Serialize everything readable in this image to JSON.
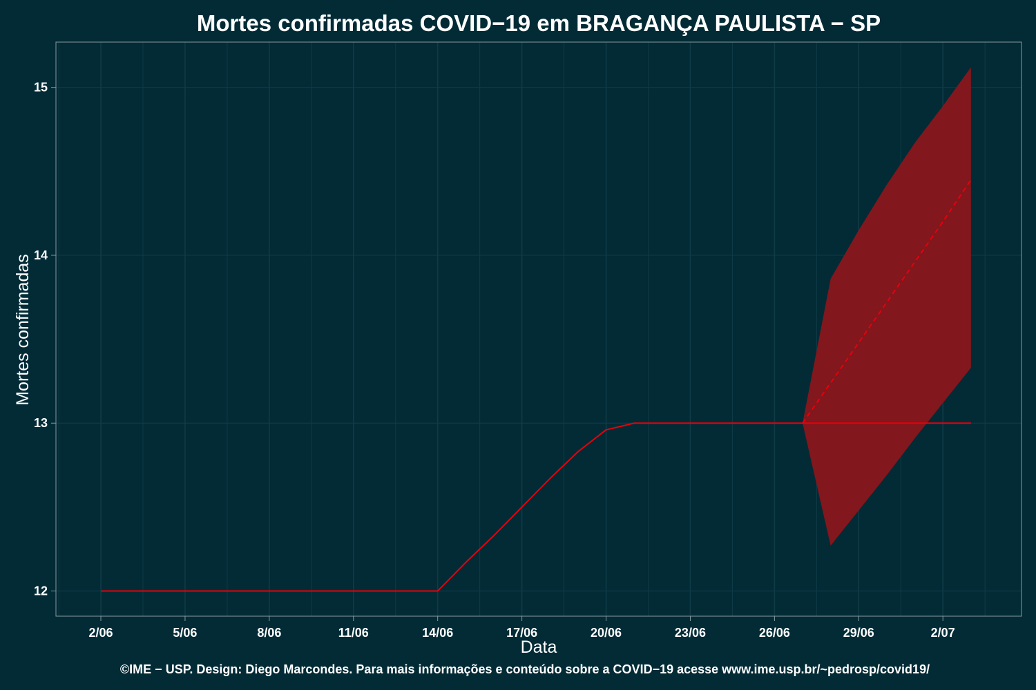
{
  "chart_data": {
    "type": "line",
    "title": "Mortes confirmadas COVID−19 em BRAGANÇA PAULISTA − SP",
    "xlabel": "Data",
    "ylabel": "Mortes confirmadas",
    "caption": "©IME − USP. Design: Diego Marcondes. Para mais informações e conteúdo sobre a COVID−19 acesse www.ime.usp.br/~pedrosp/covid19/",
    "x_ticks": [
      {
        "day": 2,
        "label": "2/06"
      },
      {
        "day": 5,
        "label": "5/06"
      },
      {
        "day": 8,
        "label": "8/06"
      },
      {
        "day": 11,
        "label": "11/06"
      },
      {
        "day": 14,
        "label": "14/06"
      },
      {
        "day": 17,
        "label": "17/06"
      },
      {
        "day": 20,
        "label": "20/06"
      },
      {
        "day": 23,
        "label": "23/06"
      },
      {
        "day": 26,
        "label": "26/06"
      },
      {
        "day": 29,
        "label": "29/06"
      },
      {
        "day": 32,
        "label": "2/07"
      }
    ],
    "y_ticks": [
      12,
      13,
      14,
      15
    ],
    "xlim": [
      0.4,
      34.8
    ],
    "ylim": [
      11.85,
      15.27
    ],
    "grid": true,
    "colors": {
      "background": "#022b36",
      "line": "#e8000b",
      "band": "#82171d",
      "grid": "#0f3b47",
      "axis": "#8a9aa0"
    },
    "series": [
      {
        "points": [
          [
            2,
            12
          ],
          [
            3,
            12
          ],
          [
            4,
            12
          ],
          [
            5,
            12
          ],
          [
            6,
            12
          ],
          [
            7,
            12
          ],
          [
            8,
            12
          ],
          [
            9,
            12
          ],
          [
            10,
            12
          ],
          [
            11,
            12
          ],
          [
            12,
            12
          ],
          [
            13,
            12
          ],
          [
            14,
            12
          ],
          [
            15,
            12.17
          ],
          [
            16,
            12.33
          ],
          [
            17,
            12.5
          ],
          [
            18,
            12.67
          ],
          [
            19,
            12.83
          ],
          [
            20,
            12.96
          ],
          [
            21,
            13
          ],
          [
            22,
            13
          ],
          [
            23,
            13
          ],
          [
            24,
            13
          ],
          [
            25,
            13
          ],
          [
            26,
            13
          ],
          [
            27,
            13
          ],
          [
            28,
            13
          ],
          [
            29,
            13
          ],
          [
            30,
            13
          ],
          [
            31,
            13
          ],
          [
            32,
            13
          ],
          [
            33,
            13
          ]
        ],
        "style": "solid"
      },
      {
        "points": [
          [
            27,
            13
          ],
          [
            28,
            13.24
          ],
          [
            29,
            13.48
          ],
          [
            30,
            13.72
          ],
          [
            31,
            13.96
          ],
          [
            32,
            14.2
          ],
          [
            33,
            14.45
          ]
        ],
        "style": "dashed"
      }
    ],
    "band": {
      "x": [
        27,
        28,
        29,
        30,
        31,
        32,
        33
      ],
      "upper": [
        13,
        13.86,
        14.15,
        14.42,
        14.67,
        14.89,
        15.12
      ],
      "lower": [
        13,
        12.27,
        12.48,
        12.69,
        12.91,
        13.12,
        13.33
      ]
    }
  }
}
